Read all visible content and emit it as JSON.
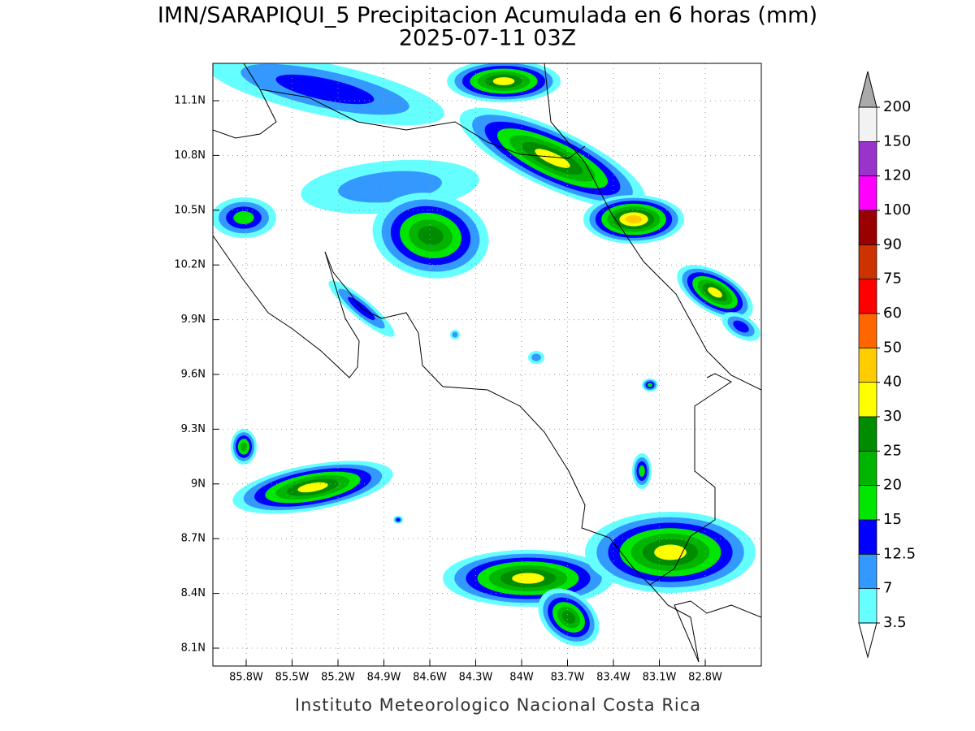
{
  "header": {
    "title": "IMN/SARAPIQUI_5 Precipitacion Acumulada en 6 horas (mm)",
    "subtitle": "2025-07-11 03Z"
  },
  "map": {
    "lat_labels": [
      "11.1N",
      "10.8N",
      "10.5N",
      "10.2N",
      "9.9N",
      "9.6N",
      "9.3N",
      "9N",
      "8.7N",
      "8.4N",
      "8.1N"
    ],
    "lon_labels": [
      "85.8W",
      "85.5W",
      "85.2W",
      "84.9W",
      "84.6W",
      "84.3W",
      "84W",
      "83.7W",
      "83.4W",
      "83.1W",
      "82.8W"
    ]
  },
  "colorbar": {
    "levels": [
      3.5,
      7,
      12.5,
      15,
      20,
      25,
      30,
      40,
      50,
      60,
      75,
      90,
      100,
      120,
      150,
      200
    ],
    "colors": [
      "#66ffff",
      "#3399ff",
      "#0000ff",
      "#00e600",
      "#00b400",
      "#008c00",
      "#ffff00",
      "#ffcc00",
      "#ff6600",
      "#ff0000",
      "#cc3300",
      "#990000",
      "#ff00ff",
      "#9933cc",
      "#f2f2f2"
    ],
    "under_color": "#ffffff",
    "over_color": "#aaaaaa"
  },
  "footer": "Instituto Meteorologico Nacional Costa Rica"
}
